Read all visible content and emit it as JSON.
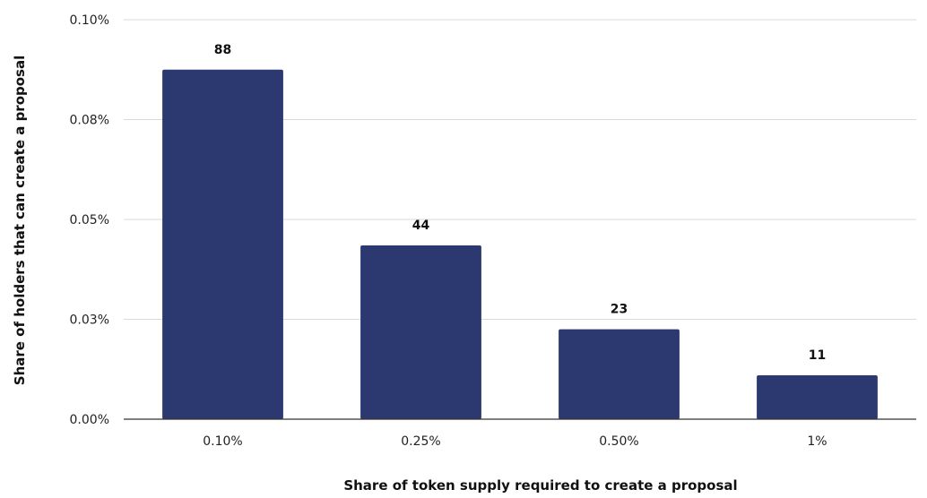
{
  "chart_data": {
    "type": "bar",
    "title": "",
    "xlabel": "Share of token supply required to create a proposal",
    "ylabel": "Share of holders that can create a proposal",
    "categories": [
      "0.10%",
      "0.25%",
      "0.50%",
      "1%"
    ],
    "values": [
      0.0875,
      0.0435,
      0.0225,
      0.011
    ],
    "data_labels": [
      "88",
      "44",
      "23",
      "11"
    ],
    "ylim": [
      0,
      0.1
    ],
    "yticks": [
      0,
      0.025,
      0.05,
      0.075,
      0.1
    ],
    "ytick_labels": [
      "0.00%",
      "0.03%",
      "0.05%",
      "0.08%",
      "0.10%"
    ],
    "grid": true,
    "legend": "none",
    "bar_color": "#2b3970",
    "grid_color": "#d9d9d9",
    "axis_color": "#333333"
  }
}
